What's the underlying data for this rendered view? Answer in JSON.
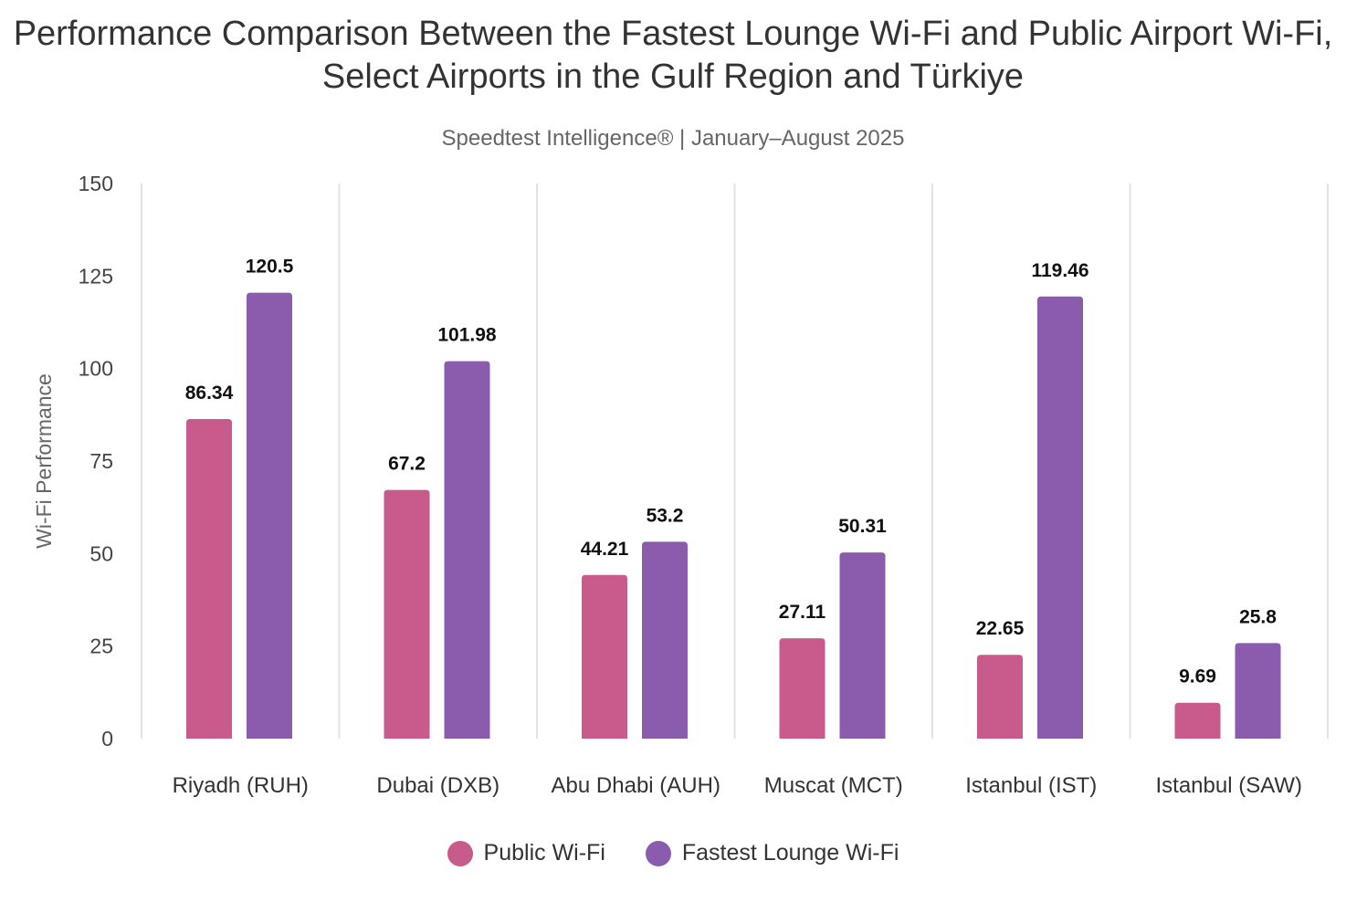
{
  "chart_data": {
    "type": "bar",
    "title": "Performance Comparison Between the Fastest Lounge Wi-Fi and Public Airport Wi-Fi, Select Airports in the Gulf Region and Türkiye",
    "subtitle": "Speedtest Intelligence® | January–August 2025",
    "xlabel": "",
    "ylabel": "Wi-Fi Performance",
    "ylim": [
      0,
      150
    ],
    "yticks": [
      0,
      25,
      50,
      75,
      100,
      125,
      150
    ],
    "grid": "vertical category separators",
    "legend_position": "bottom",
    "categories": [
      "Riyadh (RUH)",
      "Dubai (DXB)",
      "Abu Dhabi (AUH)",
      "Muscat (MCT)",
      "Istanbul (IST)",
      "Istanbul (SAW)"
    ],
    "series": [
      {
        "name": "Public Wi-Fi",
        "color": "#C85A8C",
        "values": [
          86.34,
          67.2,
          44.21,
          27.11,
          22.65,
          9.69
        ]
      },
      {
        "name": "Fastest Lounge Wi-Fi",
        "color": "#8B5CAD",
        "values": [
          120.5,
          101.98,
          53.2,
          50.31,
          119.46,
          25.8
        ]
      }
    ]
  }
}
